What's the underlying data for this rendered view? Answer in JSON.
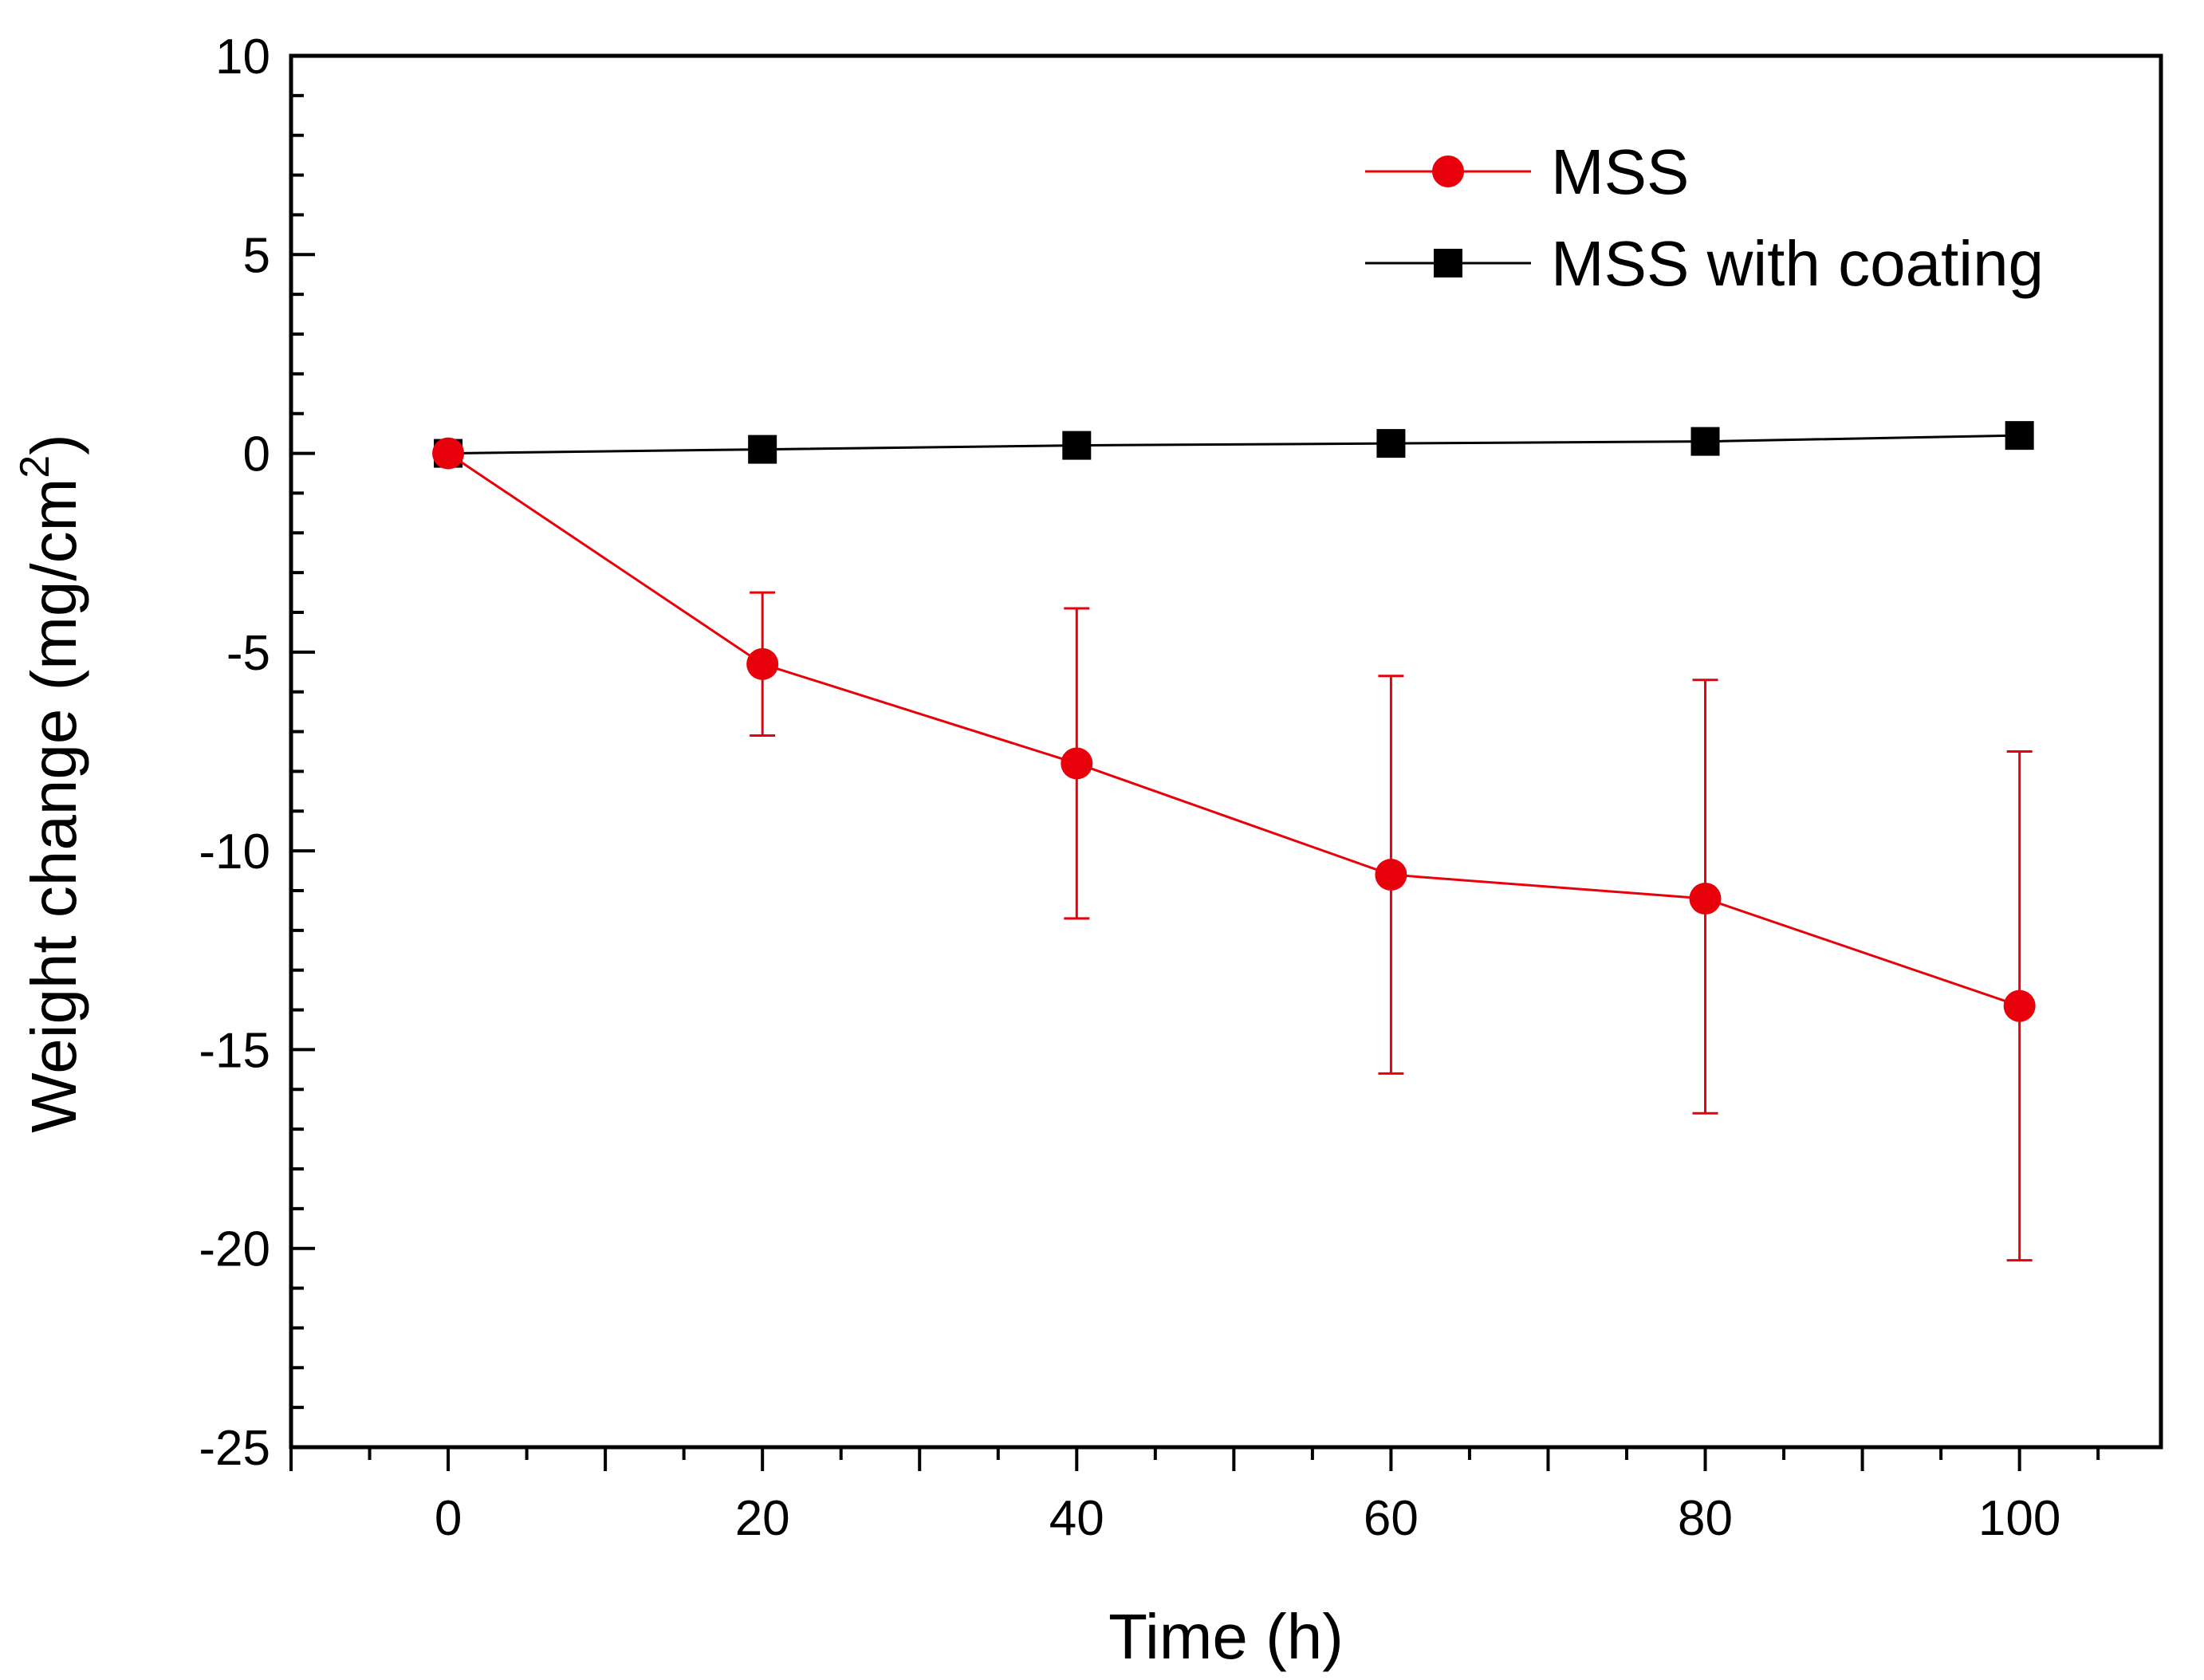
{
  "chart_data": {
    "type": "line",
    "title": "",
    "xlabel": "Time (h)",
    "ylabel": "Weight change (mg/cm",
    "ylabel_superscript": "2",
    "ylabel_close": ")",
    "xlim": [
      -10,
      109
    ],
    "ylim": [
      -25,
      10
    ],
    "xticks": [
      0,
      20,
      40,
      60,
      80,
      100
    ],
    "xtick_labels": [
      "0",
      "20",
      "40",
      "60",
      "80",
      "100"
    ],
    "yticks": [
      10,
      5,
      0,
      -5,
      -10,
      -15,
      -20,
      -25
    ],
    "ytick_labels": [
      "10",
      "5",
      "0",
      "-5",
      "-10",
      "-15",
      "-20",
      "-25"
    ],
    "grid": false,
    "legend_position": "top-right",
    "x": [
      0,
      20,
      40,
      60,
      80,
      100
    ],
    "series": [
      {
        "name": "MSS",
        "color": "#e8000b",
        "marker": "circle",
        "values": [
          0,
          -5.3,
          -7.8,
          -10.6,
          -11.2,
          -13.9
        ],
        "error_low": [
          0,
          -7.1,
          -11.7,
          -15.6,
          -16.6,
          -20.3
        ],
        "error_high": [
          0,
          -3.5,
          -3.9,
          -5.6,
          -5.7,
          -7.5
        ]
      },
      {
        "name": "MSS with coating",
        "color": "#000000",
        "marker": "square",
        "values": [
          0,
          0.1,
          0.2,
          0.25,
          0.3,
          0.45
        ]
      }
    ]
  }
}
